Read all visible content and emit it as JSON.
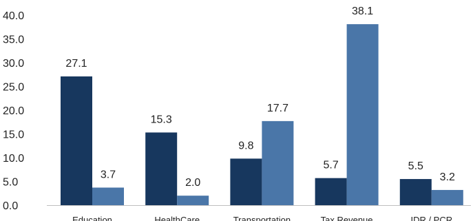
{
  "chart_data": {
    "type": "bar",
    "title": "",
    "xlabel": "",
    "ylabel": "",
    "categories": [
      "Education",
      "HealthCare",
      "Transportation",
      "Tax Revenue",
      "IDR / PCR"
    ],
    "series": [
      {
        "values": [
          27.1,
          15.3,
          9.8,
          5.7,
          5.5
        ],
        "color": "#17375e"
      },
      {
        "values": [
          3.7,
          2.0,
          17.7,
          38.1,
          3.2
        ],
        "color": "#4a76a8"
      }
    ],
    "data_labels": [
      [
        "27.1",
        "15.3",
        "9.8",
        "5.7",
        "5.5"
      ],
      [
        "3.7",
        "2.0",
        "17.7",
        "38.1",
        "3.2"
      ]
    ],
    "ylim": [
      0,
      40
    ],
    "yticks": [
      "0.0",
      "5.0",
      "10.0",
      "15.0",
      "20.0",
      "25.0",
      "30.0",
      "35.0",
      "40.0"
    ],
    "grid": false,
    "legend": "none"
  }
}
